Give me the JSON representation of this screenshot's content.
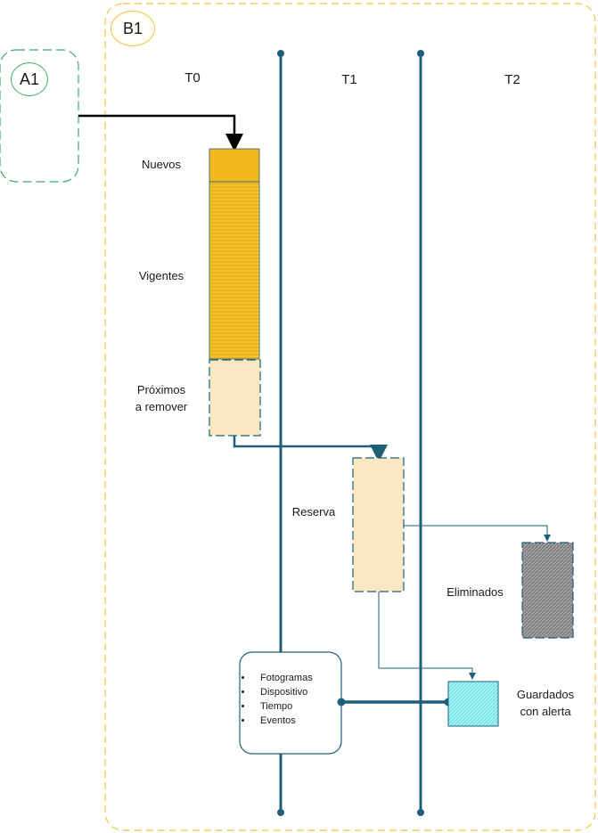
{
  "containers": {
    "a1_badge": "A1",
    "b1_badge": "B1"
  },
  "timelines": [
    "T0",
    "T1",
    "T2"
  ],
  "labels": {
    "nuevos": "Nuevos",
    "vigentes": "Vigentes",
    "proximos_line1": "Próximos",
    "proximos_line2": "a remover",
    "reserva": "Reserva",
    "eliminados": "Eliminados",
    "guardados_line1": "Guardados",
    "guardados_line2": "con alerta"
  },
  "metadata_items": [
    "Fotogramas",
    "Dispositivo",
    "Tiempo",
    "Eventos"
  ],
  "colors": {
    "b1_border": "#f2c43c",
    "a1_border": "#3aaa6a",
    "timeline": "#1f5f7a",
    "nuevos_fill": "#f0b81c",
    "vigentes_fill": "#f5c12a",
    "pale_fill": "#fbe7c2",
    "eliminados_fill": "#9a9a9a",
    "guardados_fill": "#9ef3f3"
  }
}
